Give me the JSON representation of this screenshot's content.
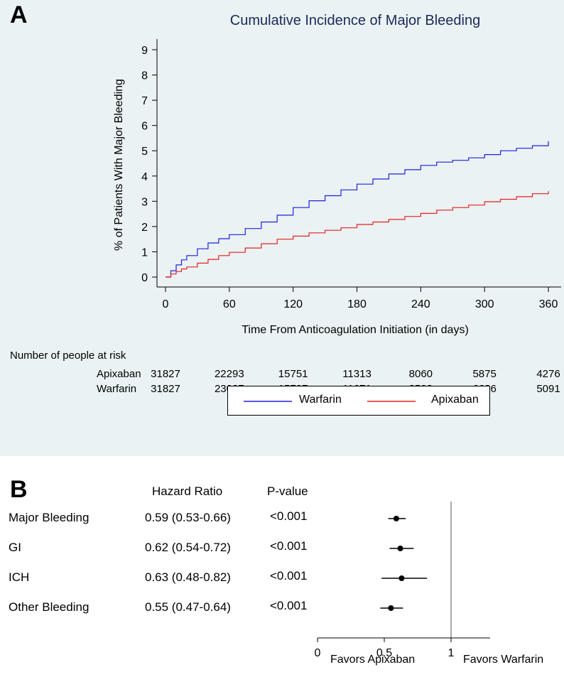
{
  "panel_a": {
    "letter": "A",
    "risk_table": {
      "title": "Number of people at risk",
      "rows": [
        {
          "label": "Apixaban",
          "values": [
            "31827",
            "22293",
            "15751",
            "11313",
            "8060",
            "5875",
            "4276"
          ]
        },
        {
          "label": "Warfarin",
          "values": [
            "31827",
            "23027",
            "15797",
            "11671",
            "8592",
            "6636",
            "5091"
          ]
        }
      ]
    },
    "legend": [
      {
        "name": "Warfarin",
        "color": "#2020e0"
      },
      {
        "name": "Apixaban",
        "color": "#e82020"
      }
    ]
  },
  "panel_b": {
    "letter": "B",
    "col_hr": "Hazard Ratio",
    "col_p": "P-value",
    "rows": [
      {
        "label": "Major Bleeding",
        "hr_text": "0.59 (0.53-0.66)",
        "p": "<0.001"
      },
      {
        "label": "GI",
        "hr_text": "0.62 (0.54-0.72)",
        "p": "<0.001"
      },
      {
        "label": "ICH",
        "hr_text": "0.63 (0.48-0.82)",
        "p": "<0.001"
      },
      {
        "label": "Other Bleeding",
        "hr_text": "0.55 (0.47-0.64)",
        "p": "<0.001"
      }
    ],
    "favors_left": "Favors Apixaban",
    "favors_right": "Favors Warfarin"
  },
  "chart_data": [
    {
      "type": "line",
      "title": "Cumulative Incidence of Major Bleeding",
      "xlabel": "Time From Anticoagulation Initiation (in days)",
      "ylabel": "% of Patients With Major Bleeding",
      "xlim": [
        0,
        360
      ],
      "ylim": [
        0,
        9
      ],
      "xticks": [
        0,
        60,
        120,
        180,
        240,
        300,
        360
      ],
      "yticks": [
        0,
        1,
        2,
        3,
        4,
        5,
        6,
        7,
        8,
        9
      ],
      "grid": false,
      "legend_position": "bottom",
      "series": [
        {
          "name": "Warfarin",
          "color": "#2020e0",
          "x": [
            0,
            5,
            10,
            15,
            20,
            30,
            40,
            50,
            60,
            75,
            90,
            105,
            120,
            135,
            150,
            165,
            180,
            195,
            210,
            225,
            240,
            255,
            270,
            285,
            300,
            315,
            330,
            345,
            360
          ],
          "y": [
            0,
            0.25,
            0.48,
            0.68,
            0.85,
            1.12,
            1.35,
            1.52,
            1.68,
            1.92,
            2.18,
            2.45,
            2.75,
            3.02,
            3.22,
            3.45,
            3.68,
            3.88,
            4.08,
            4.25,
            4.42,
            4.55,
            4.62,
            4.72,
            4.85,
            5.0,
            5.1,
            5.2,
            5.38
          ]
        },
        {
          "name": "Apixaban",
          "color": "#e82020",
          "x": [
            0,
            5,
            10,
            15,
            20,
            30,
            40,
            50,
            60,
            75,
            90,
            105,
            120,
            135,
            150,
            165,
            180,
            195,
            210,
            225,
            240,
            255,
            270,
            285,
            300,
            315,
            330,
            345,
            360
          ],
          "y": [
            0,
            0.12,
            0.22,
            0.32,
            0.4,
            0.55,
            0.7,
            0.85,
            0.98,
            1.15,
            1.32,
            1.5,
            1.62,
            1.75,
            1.85,
            1.95,
            2.08,
            2.18,
            2.28,
            2.4,
            2.52,
            2.65,
            2.75,
            2.85,
            2.98,
            3.08,
            3.18,
            3.3,
            3.4
          ]
        }
      ]
    },
    {
      "type": "scatter",
      "subtype": "forest",
      "xlim": [
        0,
        1.3
      ],
      "xticks": [
        0,
        0.5,
        1
      ],
      "reference_line": 1,
      "series": [
        {
          "names": [
            "Major Bleeding",
            "GI",
            "ICH",
            "Other Bleeding"
          ],
          "estimate": [
            0.59,
            0.62,
            0.63,
            0.55
          ],
          "lower": [
            0.53,
            0.54,
            0.48,
            0.47
          ],
          "upper": [
            0.66,
            0.72,
            0.82,
            0.64
          ]
        }
      ]
    }
  ]
}
